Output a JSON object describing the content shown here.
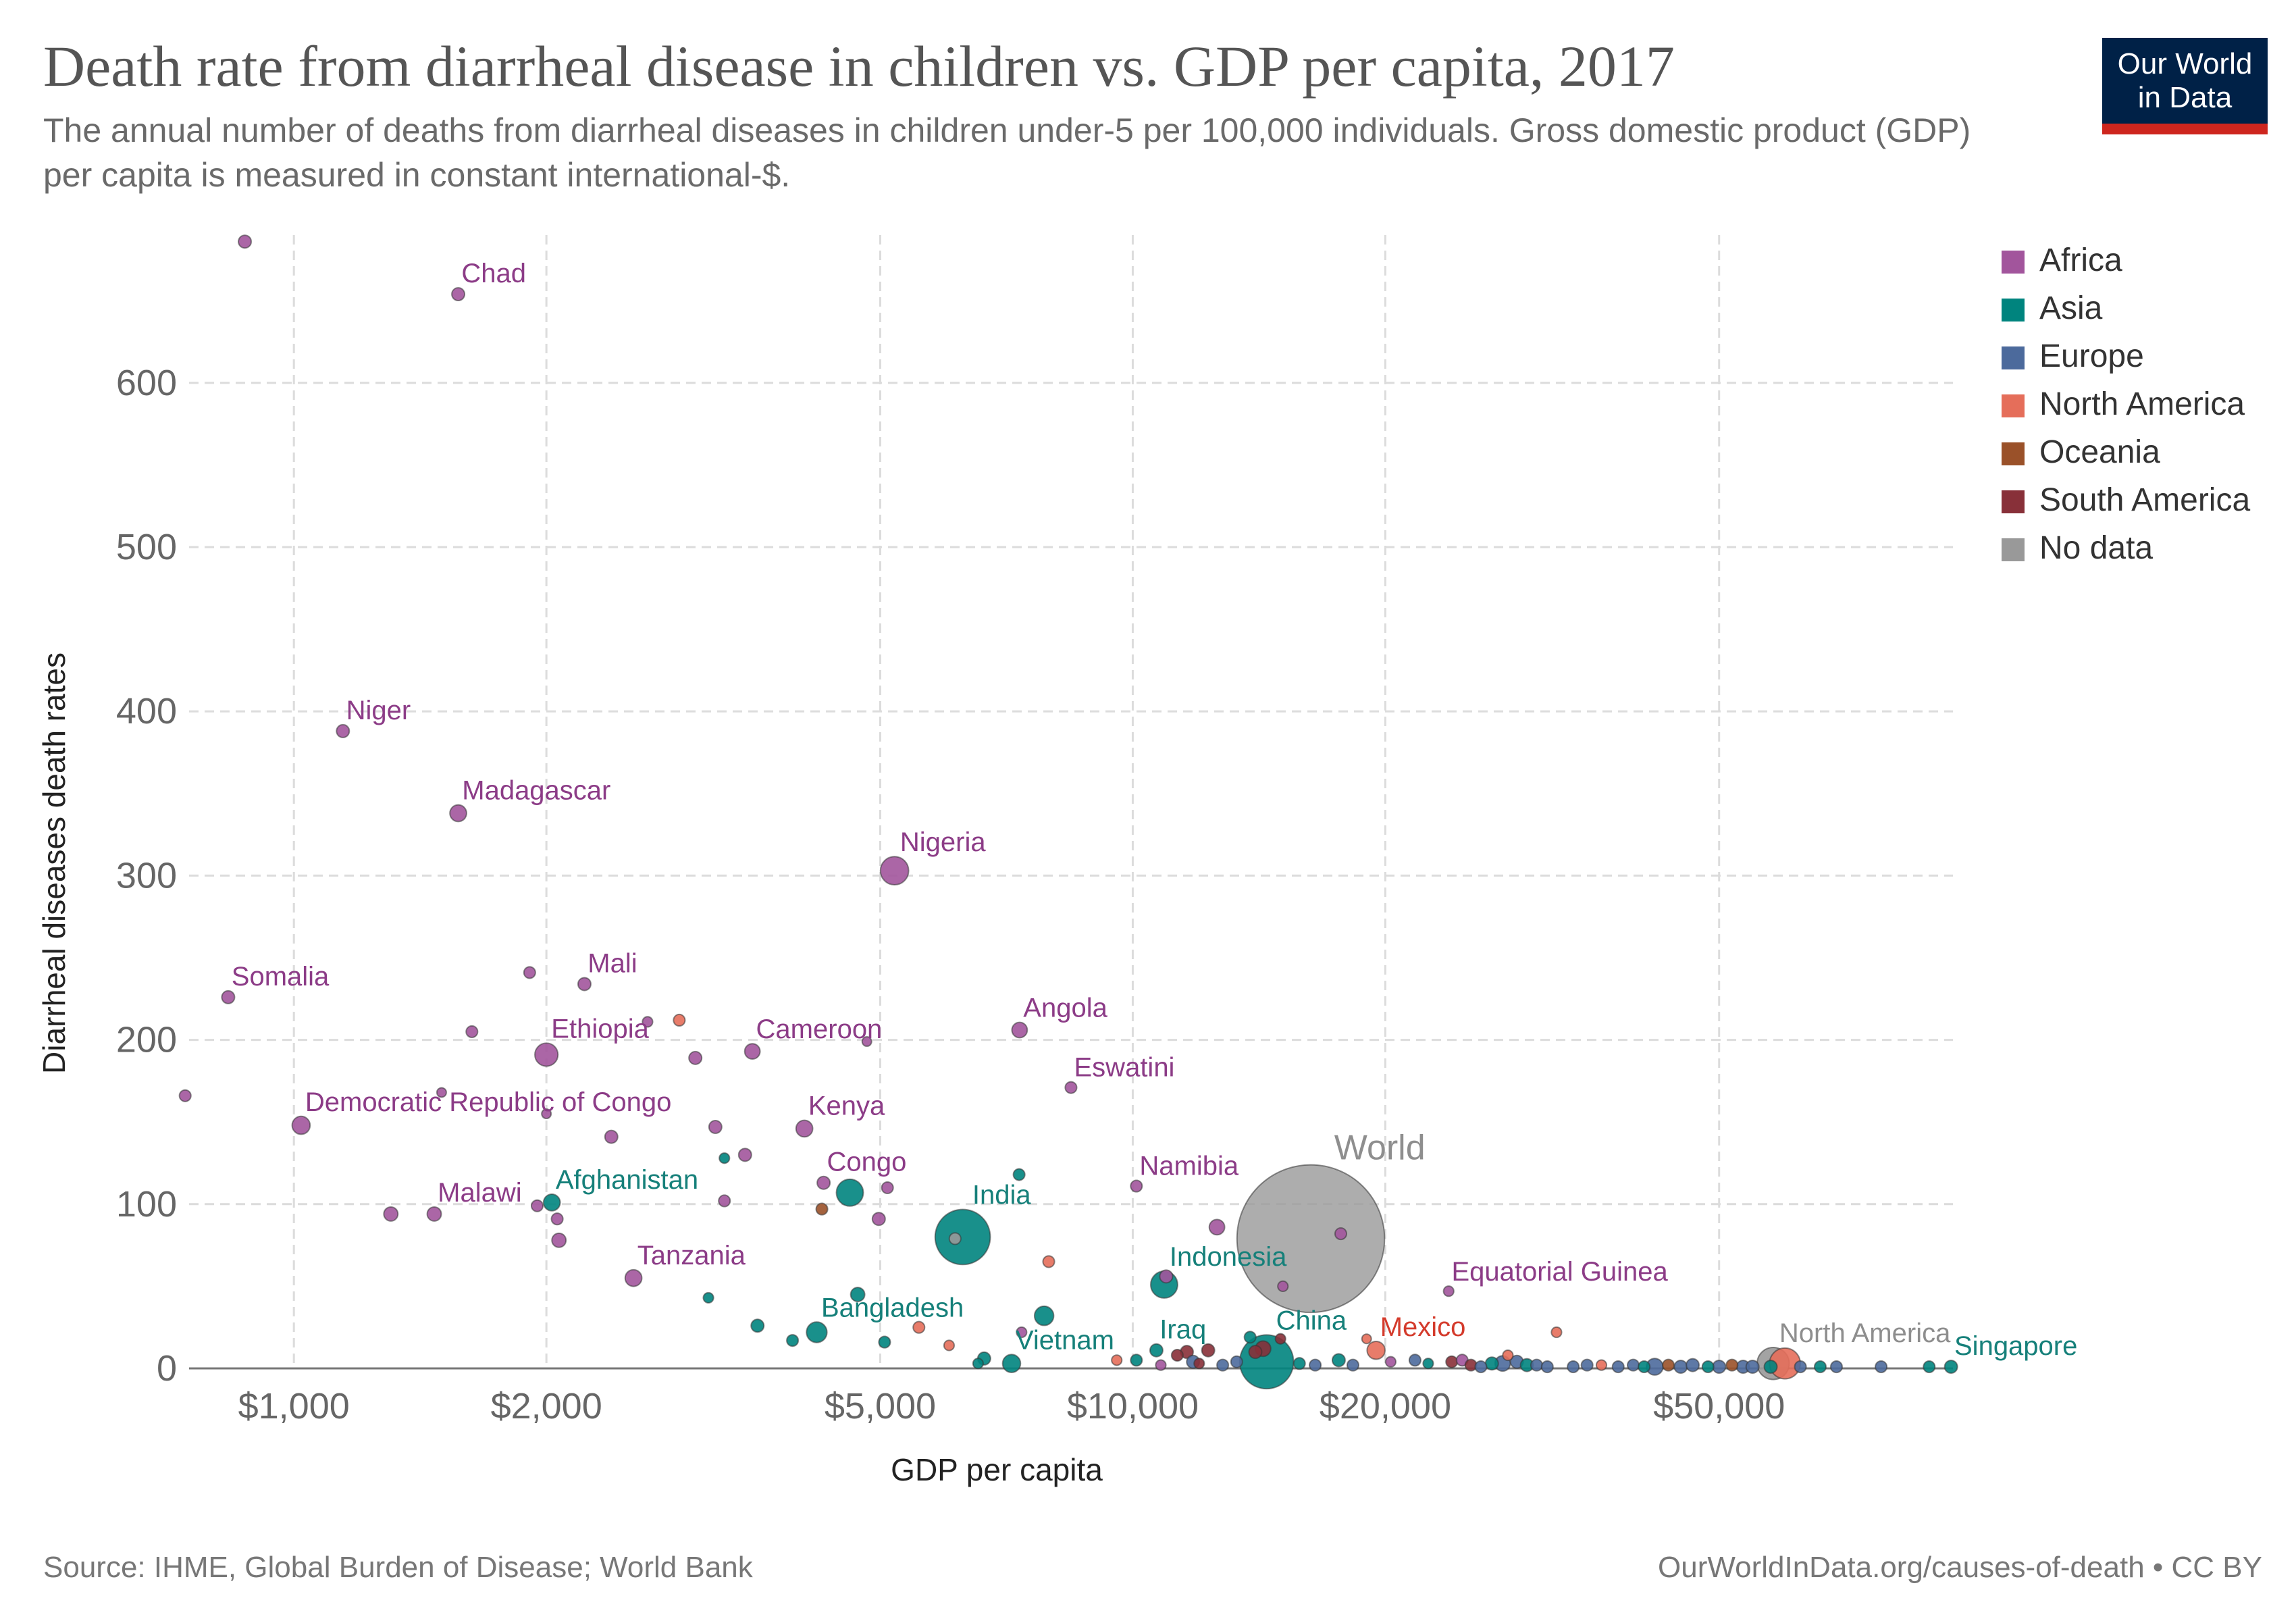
{
  "header": {
    "title": "Death rate from diarrheal disease in children vs. GDP per capita, 2017",
    "subtitle": "The annual number of deaths from diarrheal diseases in children under-5 per 100,000 individuals. Gross domestic product (GDP) per capita is measured in constant international-$.",
    "logo_line1": "Our World",
    "logo_line2": "in Data"
  },
  "footer": {
    "source": "Source: IHME, Global Burden of Disease; World Bank",
    "license": "OurWorldInData.org/causes-of-death • CC BY"
  },
  "colors": {
    "Africa": "#a2559c",
    "Asia": "#00847e",
    "Europe": "#4c6a9c",
    "North America": "#e56e5a",
    "Oceania": "#9a5129",
    "South America": "#883039",
    "No data": "#999999",
    "logo_bg": "#002147",
    "logo_bar": "#ce261e"
  },
  "label_colors": {
    "Africa": "#8c3c87",
    "Asia": "#16807a",
    "North America": "#d43b2c",
    "No data": "#8e8e8e"
  },
  "chart_data": {
    "type": "scatter",
    "xlabel": "GDP per capita",
    "ylabel": "Diarrheal diseases death rates",
    "x_scale": "log",
    "xlim": [
      750,
      95000
    ],
    "ylim": [
      0,
      690
    ],
    "x_ticks": [
      {
        "value": 1000,
        "label": "$1,000"
      },
      {
        "value": 2000,
        "label": "$2,000"
      },
      {
        "value": 5000,
        "label": "$5,000"
      },
      {
        "value": 10000,
        "label": "$10,000"
      },
      {
        "value": 20000,
        "label": "$20,000"
      },
      {
        "value": 50000,
        "label": "$50,000"
      }
    ],
    "y_ticks": [
      {
        "value": 0,
        "label": "0"
      },
      {
        "value": 100,
        "label": "100"
      },
      {
        "value": 200,
        "label": "200"
      },
      {
        "value": 300,
        "label": "300"
      },
      {
        "value": 400,
        "label": "400"
      },
      {
        "value": 500,
        "label": "500"
      },
      {
        "value": 600,
        "label": "600"
      }
    ],
    "grid": true,
    "legend_position": "right",
    "legend": [
      "Africa",
      "Asia",
      "Europe",
      "North America",
      "Oceania",
      "South America",
      "No data"
    ],
    "points": [
      {
        "x": 874,
        "y": 686,
        "r": "Africa",
        "s": 1
      },
      {
        "x": 1570,
        "y": 654,
        "r": "Africa",
        "s": 1,
        "label": "Chad"
      },
      {
        "x": 1144,
        "y": 388,
        "r": "Africa",
        "s": 1,
        "label": "Niger"
      },
      {
        "x": 1570,
        "y": 338,
        "r": "Africa",
        "s": 1.3,
        "label": "Madagascar"
      },
      {
        "x": 5200,
        "y": 303,
        "r": "Africa",
        "s": 2.2,
        "label": "Nigeria"
      },
      {
        "x": 835,
        "y": 226,
        "r": "Africa",
        "s": 1,
        "label": "Somalia"
      },
      {
        "x": 1910,
        "y": 241,
        "r": "Africa",
        "s": 0.9
      },
      {
        "x": 2220,
        "y": 234,
        "r": "Africa",
        "s": 1,
        "label": "Mali"
      },
      {
        "x": 1630,
        "y": 205,
        "r": "Africa",
        "s": 0.9
      },
      {
        "x": 2000,
        "y": 191,
        "r": "Africa",
        "s": 1.8,
        "label": "Ethiopia"
      },
      {
        "x": 2640,
        "y": 211,
        "r": "Africa",
        "s": 0.8
      },
      {
        "x": 2880,
        "y": 212,
        "r": "North America",
        "s": 0.9
      },
      {
        "x": 3010,
        "y": 189,
        "r": "Africa",
        "s": 1
      },
      {
        "x": 3520,
        "y": 193,
        "r": "Africa",
        "s": 1.2,
        "label": "Cameroon"
      },
      {
        "x": 4820,
        "y": 199,
        "r": "Africa",
        "s": 0.6
      },
      {
        "x": 7330,
        "y": 206,
        "r": "Africa",
        "s": 1.2,
        "label": "Angola"
      },
      {
        "x": 8440,
        "y": 171,
        "r": "Africa",
        "s": 0.9,
        "label": "Eswatini"
      },
      {
        "x": 742,
        "y": 166,
        "r": "Africa",
        "s": 0.9
      },
      {
        "x": 1020,
        "y": 148,
        "r": "Africa",
        "s": 1.4,
        "label": "Democratic Republic of Congo"
      },
      {
        "x": 1500,
        "y": 168,
        "r": "Africa",
        "s": 0.7
      },
      {
        "x": 2000,
        "y": 155,
        "r": "Africa",
        "s": 0.7
      },
      {
        "x": 2390,
        "y": 141,
        "r": "Africa",
        "s": 1
      },
      {
        "x": 3180,
        "y": 147,
        "r": "Africa",
        "s": 1
      },
      {
        "x": 3260,
        "y": 128,
        "r": "Asia",
        "s": 0.8
      },
      {
        "x": 3450,
        "y": 130,
        "r": "Africa",
        "s": 1
      },
      {
        "x": 4060,
        "y": 146,
        "r": "Africa",
        "s": 1.3,
        "label": "Kenya"
      },
      {
        "x": 4280,
        "y": 113,
        "r": "Africa",
        "s": 1,
        "label": "Congo"
      },
      {
        "x": 4600,
        "y": 107,
        "r": "Asia",
        "s": 2.1
      },
      {
        "x": 5100,
        "y": 110,
        "r": "Africa",
        "s": 0.9
      },
      {
        "x": 7320,
        "y": 118,
        "r": "Asia",
        "s": 0.9
      },
      {
        "x": 10100,
        "y": 111,
        "r": "Africa",
        "s": 0.9,
        "label": "Namibia"
      },
      {
        "x": 1305,
        "y": 94,
        "r": "Africa",
        "s": 1.1
      },
      {
        "x": 1470,
        "y": 94,
        "r": "Africa",
        "s": 1.1,
        "label": "Malawi"
      },
      {
        "x": 1950,
        "y": 99,
        "r": "Africa",
        "s": 0.9
      },
      {
        "x": 2030,
        "y": 101,
        "r": "Asia",
        "s": 1.3,
        "label": "Afghanistan"
      },
      {
        "x": 2060,
        "y": 91,
        "r": "Africa",
        "s": 0.9
      },
      {
        "x": 2070,
        "y": 78,
        "r": "Africa",
        "s": 1.1
      },
      {
        "x": 3260,
        "y": 102,
        "r": "Africa",
        "s": 0.9
      },
      {
        "x": 4260,
        "y": 97,
        "r": "Oceania",
        "s": 0.9
      },
      {
        "x": 4980,
        "y": 91,
        "r": "Africa",
        "s": 1
      },
      {
        "x": 6140,
        "y": 79,
        "r": "No data",
        "s": 0.9
      },
      {
        "x": 6270,
        "y": 80,
        "r": "Asia",
        "s": 4.3,
        "label": "India"
      },
      {
        "x": 7940,
        "y": 65,
        "r": "North America",
        "s": 0.9
      },
      {
        "x": 10960,
        "y": 56,
        "r": "Africa",
        "s": 1
      },
      {
        "x": 10900,
        "y": 51,
        "r": "Asia",
        "s": 2.1,
        "label": "Indonesia"
      },
      {
        "x": 12600,
        "y": 86,
        "r": "Africa",
        "s": 1.2
      },
      {
        "x": 17700,
        "y": 82,
        "r": "Africa",
        "s": 0.9
      },
      {
        "x": 16300,
        "y": 79,
        "r": "No data",
        "s": 11.5,
        "label": "World"
      },
      {
        "x": 15100,
        "y": 50,
        "r": "Africa",
        "s": 0.8
      },
      {
        "x": 23800,
        "y": 47,
        "r": "Africa",
        "s": 0.8,
        "label": "Equatorial Guinea"
      },
      {
        "x": 2540,
        "y": 55,
        "r": "Africa",
        "s": 1.3,
        "label": "Tanzania"
      },
      {
        "x": 3120,
        "y": 43,
        "r": "Asia",
        "s": 0.8
      },
      {
        "x": 3570,
        "y": 26,
        "r": "Asia",
        "s": 1
      },
      {
        "x": 3930,
        "y": 17,
        "r": "Asia",
        "s": 0.9
      },
      {
        "x": 4200,
        "y": 22,
        "r": "Asia",
        "s": 1.6,
        "label": "Bangladesh"
      },
      {
        "x": 4700,
        "y": 45,
        "r": "Asia",
        "s": 1.1
      },
      {
        "x": 5060,
        "y": 16,
        "r": "Asia",
        "s": 0.9
      },
      {
        "x": 5560,
        "y": 25,
        "r": "North America",
        "s": 0.9
      },
      {
        "x": 6040,
        "y": 14,
        "r": "North America",
        "s": 0.8
      },
      {
        "x": 6540,
        "y": 3,
        "r": "Asia",
        "s": 0.8
      },
      {
        "x": 6650,
        "y": 6,
        "r": "Asia",
        "s": 1
      },
      {
        "x": 7170,
        "y": 3,
        "r": "Asia",
        "s": 1.4,
        "label": "Vietnam"
      },
      {
        "x": 7370,
        "y": 22,
        "r": "Africa",
        "s": 0.8
      },
      {
        "x": 7840,
        "y": 32,
        "r": "Asia",
        "s": 1.5
      },
      {
        "x": 9570,
        "y": 5,
        "r": "North America",
        "s": 0.8
      },
      {
        "x": 10100,
        "y": 5,
        "r": "Asia",
        "s": 0.9
      },
      {
        "x": 10670,
        "y": 11,
        "r": "Asia",
        "s": 1,
        "label": "Iraq"
      },
      {
        "x": 10800,
        "y": 2,
        "r": "Africa",
        "s": 0.8
      },
      {
        "x": 11300,
        "y": 8,
        "r": "South America",
        "s": 0.9
      },
      {
        "x": 11600,
        "y": 10,
        "r": "South America",
        "s": 1
      },
      {
        "x": 11800,
        "y": 4,
        "r": "Europe",
        "s": 1
      },
      {
        "x": 12000,
        "y": 3,
        "r": "South America",
        "s": 0.8
      },
      {
        "x": 12300,
        "y": 11,
        "r": "South America",
        "s": 1
      },
      {
        "x": 12800,
        "y": 2,
        "r": "Europe",
        "s": 0.9
      },
      {
        "x": 13300,
        "y": 4,
        "r": "Europe",
        "s": 0.9
      },
      {
        "x": 13800,
        "y": 19,
        "r": "Asia",
        "s": 0.9
      },
      {
        "x": 14000,
        "y": 10,
        "r": "South America",
        "s": 1
      },
      {
        "x": 14300,
        "y": 12,
        "r": "South America",
        "s": 1.2
      },
      {
        "x": 14440,
        "y": 4,
        "r": "Asia",
        "s": 4.2,
        "label": "China"
      },
      {
        "x": 15000,
        "y": 18,
        "r": "South America",
        "s": 0.8
      },
      {
        "x": 15800,
        "y": 3,
        "r": "Asia",
        "s": 0.9
      },
      {
        "x": 16500,
        "y": 2,
        "r": "Europe",
        "s": 0.9
      },
      {
        "x": 17600,
        "y": 5,
        "r": "Asia",
        "s": 1
      },
      {
        "x": 18300,
        "y": 2,
        "r": "Europe",
        "s": 0.9
      },
      {
        "x": 19000,
        "y": 18,
        "r": "North America",
        "s": 0.6
      },
      {
        "x": 19500,
        "y": 11,
        "r": "North America",
        "s": 1.4,
        "label": "Mexico"
      },
      {
        "x": 20300,
        "y": 4,
        "r": "Africa",
        "s": 0.8
      },
      {
        "x": 21700,
        "y": 5,
        "r": "Europe",
        "s": 0.9
      },
      {
        "x": 22500,
        "y": 3,
        "r": "Asia",
        "s": 0.8
      },
      {
        "x": 24000,
        "y": 4,
        "r": "South America",
        "s": 0.9
      },
      {
        "x": 24700,
        "y": 5,
        "r": "Africa",
        "s": 0.9
      },
      {
        "x": 25300,
        "y": 2,
        "r": "South America",
        "s": 0.9
      },
      {
        "x": 26000,
        "y": 1,
        "r": "Europe",
        "s": 0.9
      },
      {
        "x": 26800,
        "y": 3,
        "r": "Asia",
        "s": 1
      },
      {
        "x": 27600,
        "y": 3,
        "r": "Europe",
        "s": 1.2
      },
      {
        "x": 28000,
        "y": 8,
        "r": "North America",
        "s": 0.8
      },
      {
        "x": 28700,
        "y": 4,
        "r": "Europe",
        "s": 1
      },
      {
        "x": 29500,
        "y": 2,
        "r": "Asia",
        "s": 1
      },
      {
        "x": 30300,
        "y": 2,
        "r": "Europe",
        "s": 0.9
      },
      {
        "x": 31200,
        "y": 1,
        "r": "Europe",
        "s": 0.9
      },
      {
        "x": 32000,
        "y": 22,
        "r": "North America",
        "s": 0.8
      },
      {
        "x": 33500,
        "y": 1,
        "r": "Europe",
        "s": 0.9
      },
      {
        "x": 34800,
        "y": 2,
        "r": "Europe",
        "s": 0.9
      },
      {
        "x": 36200,
        "y": 2,
        "r": "North America",
        "s": 0.8
      },
      {
        "x": 37900,
        "y": 1,
        "r": "Europe",
        "s": 0.9
      },
      {
        "x": 39500,
        "y": 2,
        "r": "Europe",
        "s": 0.9
      },
      {
        "x": 40700,
        "y": 1,
        "r": "Asia",
        "s": 0.9
      },
      {
        "x": 41900,
        "y": 1,
        "r": "Europe",
        "s": 1.3
      },
      {
        "x": 43500,
        "y": 2,
        "r": "Oceania",
        "s": 0.9
      },
      {
        "x": 45000,
        "y": 1,
        "r": "Europe",
        "s": 1
      },
      {
        "x": 46500,
        "y": 2,
        "r": "Europe",
        "s": 1
      },
      {
        "x": 48500,
        "y": 1,
        "r": "Asia",
        "s": 0.9
      },
      {
        "x": 50000,
        "y": 1,
        "r": "Europe",
        "s": 1
      },
      {
        "x": 51800,
        "y": 2,
        "r": "Oceania",
        "s": 0.9
      },
      {
        "x": 53400,
        "y": 1,
        "r": "Europe",
        "s": 1
      },
      {
        "x": 54800,
        "y": 1,
        "r": "Europe",
        "s": 1
      },
      {
        "x": 57600,
        "y": 1,
        "r": "Asia",
        "s": 1
      },
      {
        "x": 58000,
        "y": 3,
        "r": "No data",
        "s": 2.5,
        "label": "North America"
      },
      {
        "x": 59900,
        "y": 3,
        "r": "North America",
        "s": 2.4
      },
      {
        "x": 62500,
        "y": 1,
        "r": "Europe",
        "s": 0.9
      },
      {
        "x": 66000,
        "y": 1,
        "r": "Asia",
        "s": 0.9
      },
      {
        "x": 69000,
        "y": 1,
        "r": "Europe",
        "s": 0.9
      },
      {
        "x": 78000,
        "y": 1,
        "r": "Europe",
        "s": 0.9
      },
      {
        "x": 89000,
        "y": 1,
        "r": "Asia",
        "s": 0.9
      },
      {
        "x": 94500,
        "y": 1,
        "r": "Asia",
        "s": 1,
        "label": "Singapore"
      }
    ]
  }
}
